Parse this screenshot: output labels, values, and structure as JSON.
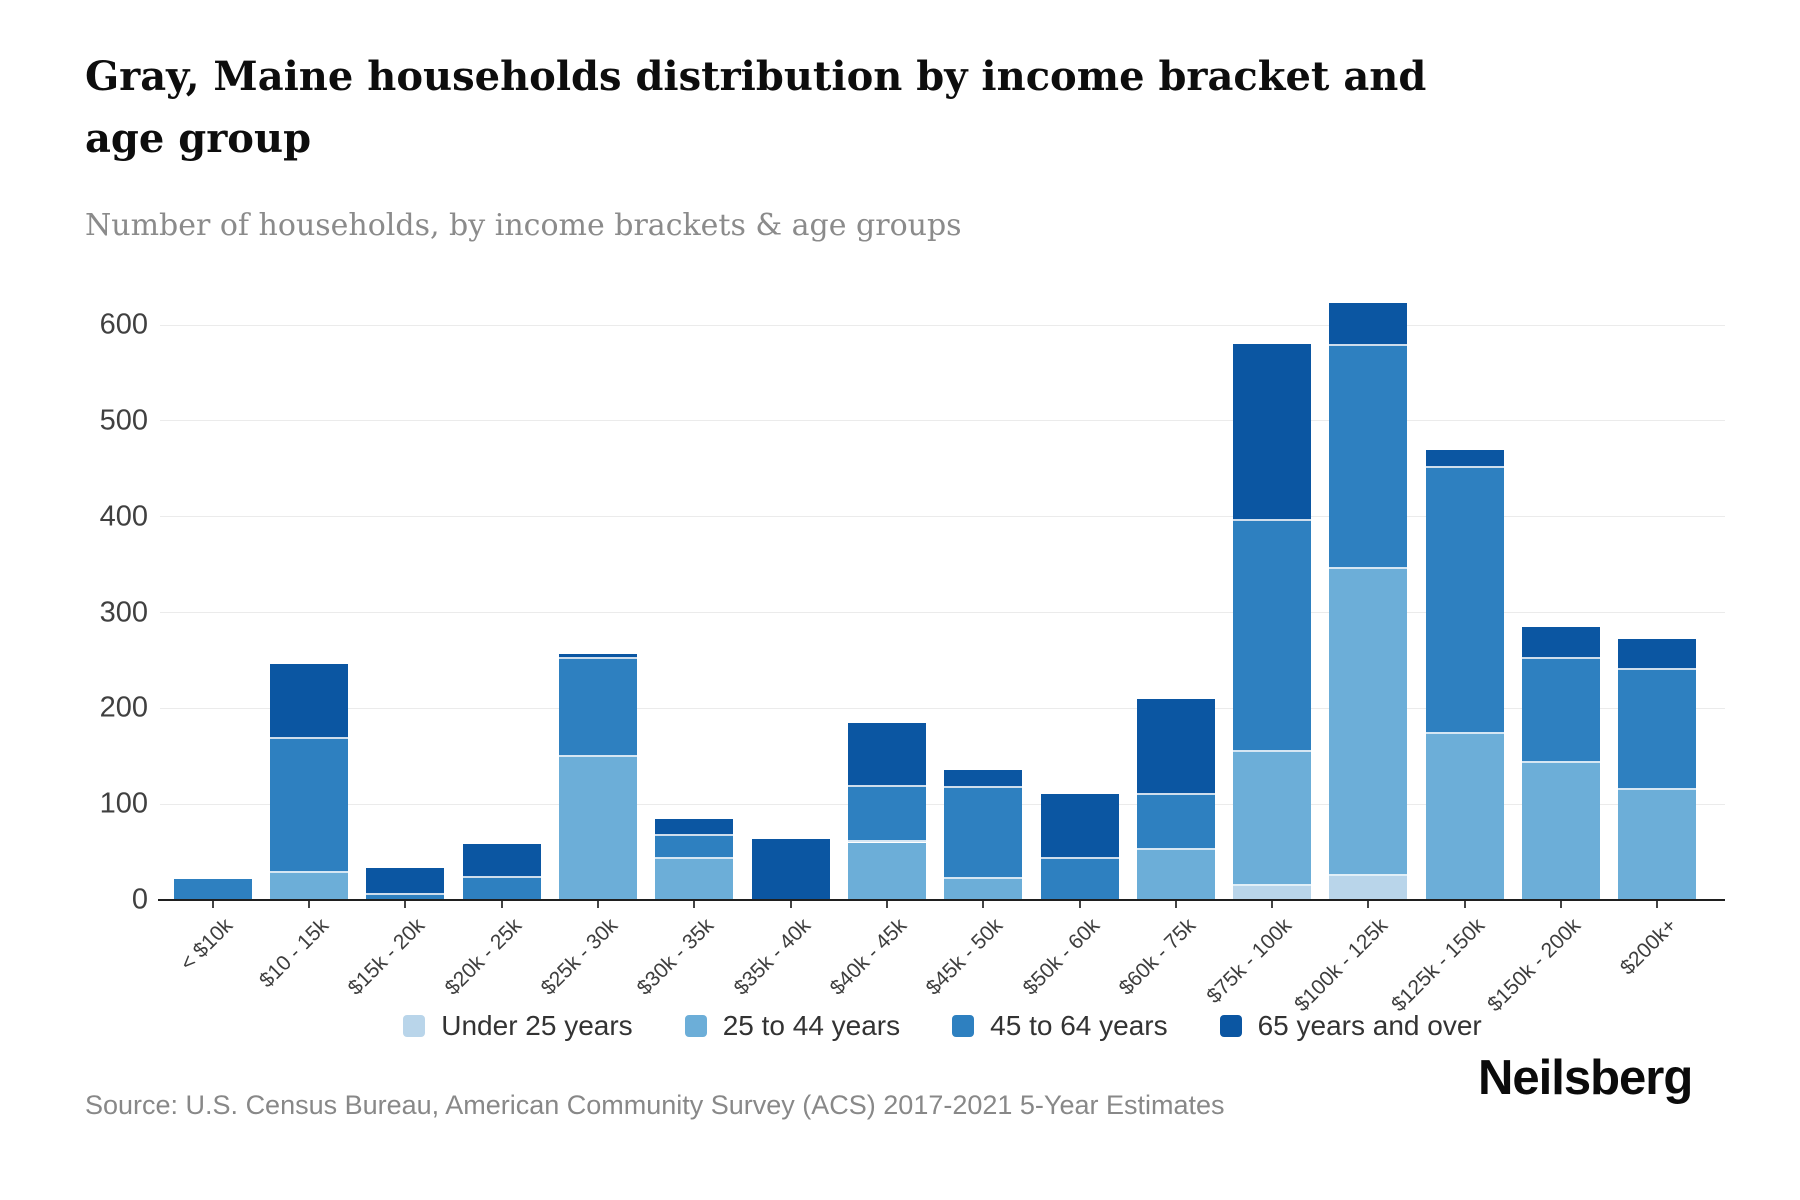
{
  "header": {
    "title": "Gray, Maine households distribution by income bracket and age group",
    "subtitle": "Number of households, by income brackets & age groups"
  },
  "chart_data": {
    "type": "bar",
    "stacked": true,
    "title": "Gray, Maine households distribution by income bracket and age group",
    "xlabel": "",
    "ylabel": "Number of households",
    "ylim": [
      0,
      600
    ],
    "yticks": [
      0,
      100,
      200,
      300,
      400,
      500,
      600
    ],
    "grid": true,
    "legend_position": "bottom",
    "categories": [
      "< $10k",
      "$10 - 15k",
      "$15k - 20k",
      "$20k - 25k",
      "$25k - 30k",
      "$30k - 35k",
      "$35k - 40k",
      "$40k - 45k",
      "$45k - 50k",
      "$50k - 60k",
      "$60k - 75k",
      "$75k - 100k",
      "$100k - 125k",
      "$125k - 150k",
      "$150k - 200k",
      "$200k+"
    ],
    "series": [
      {
        "name": "Under 25 years",
        "color": "#b9d5ea",
        "values": [
          0,
          0,
          0,
          0,
          0,
          0,
          0,
          0,
          0,
          0,
          0,
          15,
          25,
          0,
          0,
          0
        ]
      },
      {
        "name": "25 to 44 years",
        "color": "#6caed8",
        "values": [
          0,
          28,
          0,
          0,
          149,
          43,
          0,
          60,
          22,
          0,
          52,
          139,
          320,
          173,
          143,
          115
        ]
      },
      {
        "name": "45 to 64 years",
        "color": "#2e80c0",
        "values": [
          22,
          140,
          5,
          23,
          102,
          24,
          0,
          58,
          95,
          43,
          58,
          241,
          233,
          278,
          108,
          125
        ]
      },
      {
        "name": "65 years and over",
        "color": "#0b56a2",
        "values": [
          0,
          78,
          28,
          35,
          6,
          18,
          64,
          67,
          19,
          68,
          100,
          185,
          45,
          19,
          34,
          32
        ]
      }
    ]
  },
  "footer": {
    "source": "Source: U.S. Census Bureau, American Community Survey (ACS) 2017-2021 5-Year Estimates",
    "brand": "Neilsberg"
  }
}
